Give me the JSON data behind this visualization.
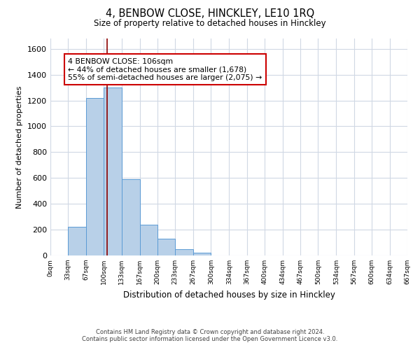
{
  "title": "4, BENBOW CLOSE, HINCKLEY, LE10 1RQ",
  "subtitle": "Size of property relative to detached houses in Hinckley",
  "xlabel": "Distribution of detached houses by size in Hinckley",
  "ylabel": "Number of detached properties",
  "bar_edges": [
    0,
    33,
    67,
    100,
    133,
    167,
    200,
    233,
    267,
    300,
    334,
    367,
    400,
    434,
    467,
    500,
    534,
    567,
    600,
    634,
    667
  ],
  "bar_heights": [
    0,
    220,
    1220,
    1300,
    590,
    240,
    130,
    50,
    20,
    0,
    0,
    0,
    0,
    0,
    0,
    0,
    0,
    0,
    0,
    0
  ],
  "bar_color": "#b8d0e8",
  "bar_edgecolor": "#5b9bd5",
  "property_line_x": 106,
  "property_line_color": "#8b0000",
  "ylim": [
    0,
    1680
  ],
  "xlim": [
    0,
    667
  ],
  "annotation_line1": "4 BENBOW CLOSE: 106sqm",
  "annotation_line2": "← 44% of detached houses are smaller (1,678)",
  "annotation_line3": "55% of semi-detached houses are larger (2,075) →",
  "annotation_box_color": "#ffffff",
  "annotation_box_edgecolor": "#cc0000",
  "xtick_labels": [
    "0sqm",
    "33sqm",
    "67sqm",
    "100sqm",
    "133sqm",
    "167sqm",
    "200sqm",
    "233sqm",
    "267sqm",
    "300sqm",
    "334sqm",
    "367sqm",
    "400sqm",
    "434sqm",
    "467sqm",
    "500sqm",
    "534sqm",
    "567sqm",
    "600sqm",
    "634sqm",
    "667sqm"
  ],
  "xtick_positions": [
    0,
    33,
    67,
    100,
    133,
    167,
    200,
    233,
    267,
    300,
    334,
    367,
    400,
    434,
    467,
    500,
    534,
    567,
    600,
    634,
    667
  ],
  "ytick_positions": [
    0,
    200,
    400,
    600,
    800,
    1000,
    1200,
    1400,
    1600
  ],
  "footnote1": "Contains HM Land Registry data © Crown copyright and database right 2024.",
  "footnote2": "Contains public sector information licensed under the Open Government Licence v3.0.",
  "background_color": "#ffffff",
  "grid_color": "#d0d8e4"
}
